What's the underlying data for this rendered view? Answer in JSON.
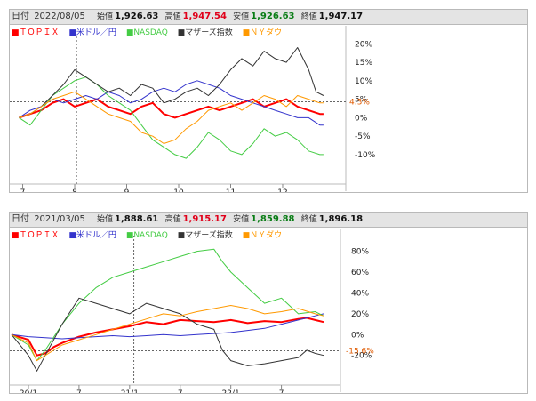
{
  "chart_data": [
    {
      "type": "line",
      "header": {
        "date_label": "日付",
        "date": "2022/08/05",
        "open_label": "始値",
        "open": "1,926.63",
        "high_label": "高値",
        "high": "1,947.54",
        "low_label": "安値",
        "low": "1,926.63",
        "close_label": "終値",
        "close": "1,947.17"
      },
      "x_ticks": [
        {
          "label": "7",
          "x": 1
        },
        {
          "label": "8",
          "x": 15
        },
        {
          "label": "9",
          "x": 29
        },
        {
          "label": "10",
          "x": 43
        },
        {
          "label": "11",
          "x": 57
        },
        {
          "label": "12",
          "x": 71
        }
      ],
      "y_ticks": [
        "20%",
        "15%",
        "10%",
        "5%",
        "0%",
        "-5%",
        "-10%"
      ],
      "y_tick_values": [
        20,
        15,
        10,
        5,
        0,
        -5,
        -10
      ],
      "ylim": [
        -17,
        22
      ],
      "xlim": [
        -2,
        88
      ],
      "cursor_x": 15.5,
      "current_line": {
        "label": "4.3%",
        "value": 4.3
      },
      "series": [
        {
          "name": "ＴＯＰＩＸ",
          "color": "#ff0000",
          "width": 2,
          "x": [
            0,
            3,
            6,
            9,
            12,
            15,
            18,
            21,
            24,
            27,
            30,
            33,
            36,
            39,
            42,
            45,
            48,
            51,
            54,
            57,
            60,
            63,
            66,
            69,
            72,
            75,
            78,
            81,
            82
          ],
          "y": [
            0,
            1,
            2,
            4,
            5,
            3,
            4,
            5,
            3,
            2,
            1,
            3,
            4,
            1,
            0,
            1,
            2,
            3,
            2,
            3,
            4,
            5,
            3,
            4,
            5,
            3,
            2,
            1,
            1
          ]
        },
        {
          "name": "米ドル／円",
          "color": "#3333cc",
          "width": 1,
          "x": [
            0,
            3,
            6,
            9,
            12,
            15,
            18,
            21,
            24,
            27,
            30,
            33,
            36,
            39,
            42,
            45,
            48,
            51,
            54,
            57,
            60,
            63,
            66,
            69,
            72,
            75,
            78,
            81,
            82
          ],
          "y": [
            0,
            2,
            3,
            5,
            4,
            5,
            6,
            5,
            7,
            6,
            4,
            5,
            7,
            8,
            7,
            9,
            10,
            9,
            8,
            6,
            5,
            4,
            3,
            2,
            1,
            0,
            0,
            -2,
            -2
          ]
        },
        {
          "name": "NASDAQ",
          "color": "#44cc44",
          "width": 1,
          "x": [
            0,
            3,
            6,
            9,
            12,
            15,
            18,
            21,
            24,
            27,
            30,
            33,
            36,
            39,
            42,
            45,
            48,
            51,
            54,
            57,
            60,
            63,
            66,
            69,
            72,
            75,
            78,
            81,
            82
          ],
          "y": [
            0,
            -2,
            2,
            6,
            8,
            10,
            11,
            9,
            6,
            4,
            2,
            -2,
            -6,
            -8,
            -10,
            -11,
            -8,
            -4,
            -6,
            -9,
            -10,
            -7,
            -3,
            -5,
            -4,
            -6,
            -9,
            -10,
            -10
          ]
        },
        {
          "name": "マザーズ指数",
          "color": "#333333",
          "width": 1,
          "x": [
            0,
            3,
            6,
            9,
            12,
            15,
            18,
            21,
            24,
            27,
            30,
            33,
            36,
            39,
            42,
            45,
            48,
            51,
            54,
            57,
            60,
            63,
            66,
            69,
            72,
            75,
            78,
            80,
            82
          ],
          "y": [
            0,
            1,
            3,
            6,
            9,
            13,
            11,
            9,
            7,
            8,
            6,
            9,
            8,
            4,
            5,
            7,
            8,
            6,
            9,
            13,
            16,
            14,
            18,
            16,
            15,
            19,
            13,
            7,
            6
          ]
        },
        {
          "name": "ＮＹダウ",
          "color": "#ff9900",
          "width": 1,
          "x": [
            0,
            3,
            6,
            9,
            12,
            15,
            18,
            21,
            24,
            27,
            30,
            33,
            36,
            39,
            42,
            45,
            48,
            51,
            54,
            57,
            60,
            63,
            66,
            69,
            72,
            75,
            78,
            81,
            82
          ],
          "y": [
            0,
            1,
            3,
            5,
            6,
            7,
            5,
            3,
            1,
            0,
            -1,
            -4,
            -5,
            -7,
            -6,
            -3,
            -1,
            2,
            3,
            4,
            2,
            4,
            6,
            5,
            3,
            6,
            5,
            4,
            4
          ]
        }
      ]
    },
    {
      "type": "line",
      "header": {
        "date_label": "日付",
        "date": "2021/03/05",
        "open_label": "始値",
        "open": "1,888.61",
        "high_label": "高値",
        "high": "1,915.17",
        "low_label": "安値",
        "low": "1,859.88",
        "close_label": "終値",
        "close": "1,896.18"
      },
      "x_ticks": [
        {
          "label": "20/1",
          "x": 2
        },
        {
          "label": "7",
          "x": 8
        },
        {
          "label": "21/1",
          "x": 14
        },
        {
          "label": "7",
          "x": 20
        },
        {
          "label": "22/1",
          "x": 26
        },
        {
          "label": "7",
          "x": 32
        }
      ],
      "y_ticks": [
        "80%",
        "60%",
        "40%",
        "20%",
        "0%",
        "-20%"
      ],
      "y_tick_values": [
        80,
        60,
        40,
        20,
        0,
        -20
      ],
      "ylim": [
        -45,
        95
      ],
      "xlim": [
        0,
        39
      ],
      "cursor_x": 14.5,
      "current_line": {
        "label": "-15.6%",
        "value": -15.6
      },
      "series": [
        {
          "name": "ＴＯＰＩＸ",
          "color": "#ff0000",
          "width": 2,
          "x": [
            0,
            2,
            3,
            4,
            5,
            6,
            7,
            8,
            10,
            12,
            14,
            16,
            18,
            20,
            22,
            24,
            26,
            28,
            30,
            32,
            34,
            35,
            36,
            37
          ],
          "y": [
            0,
            -5,
            -20,
            -18,
            -12,
            -8,
            -5,
            -2,
            2,
            5,
            8,
            12,
            10,
            14,
            13,
            12,
            14,
            11,
            13,
            12,
            15,
            16,
            14,
            12
          ]
        },
        {
          "name": "米ドル／円",
          "color": "#3333cc",
          "width": 1,
          "x": [
            0,
            2,
            4,
            6,
            8,
            10,
            12,
            14,
            16,
            18,
            20,
            22,
            24,
            26,
            28,
            30,
            32,
            34,
            36,
            37
          ],
          "y": [
            0,
            -2,
            -3,
            -4,
            -3,
            -2,
            -1,
            -2,
            -1,
            0,
            -1,
            0,
            1,
            2,
            4,
            6,
            10,
            14,
            18,
            20
          ]
        },
        {
          "name": "NASDAQ",
          "color": "#44cc44",
          "width": 1,
          "x": [
            0,
            2,
            3,
            4,
            6,
            8,
            10,
            12,
            14,
            16,
            18,
            20,
            22,
            24,
            25,
            26,
            28,
            30,
            32,
            34,
            36,
            37
          ],
          "y": [
            0,
            -10,
            -25,
            -15,
            10,
            30,
            45,
            55,
            60,
            65,
            70,
            75,
            80,
            82,
            70,
            60,
            45,
            30,
            35,
            20,
            22,
            18
          ]
        },
        {
          "name": "マザーズ指数",
          "color": "#333333",
          "width": 1,
          "x": [
            0,
            2,
            3,
            4,
            6,
            8,
            10,
            12,
            14,
            16,
            18,
            20,
            22,
            24,
            25,
            26,
            28,
            30,
            32,
            34,
            35,
            36,
            37
          ],
          "y": [
            0,
            -20,
            -35,
            -20,
            10,
            35,
            30,
            25,
            20,
            30,
            25,
            20,
            10,
            5,
            -15,
            -25,
            -30,
            -28,
            -25,
            -22,
            -15,
            -18,
            -20
          ]
        },
        {
          "name": "ＮＹダウ",
          "color": "#ff9900",
          "width": 1,
          "x": [
            0,
            2,
            3,
            4,
            6,
            8,
            10,
            12,
            14,
            16,
            18,
            20,
            22,
            24,
            26,
            28,
            30,
            32,
            34,
            36,
            37
          ],
          "y": [
            0,
            -8,
            -25,
            -20,
            -10,
            -5,
            0,
            5,
            10,
            15,
            20,
            18,
            22,
            25,
            28,
            25,
            20,
            22,
            25,
            20,
            18
          ]
        }
      ]
    }
  ]
}
